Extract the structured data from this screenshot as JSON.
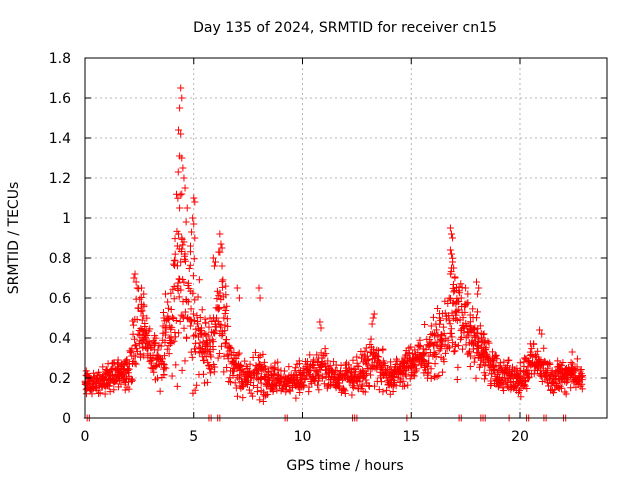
{
  "chart_data": {
    "type": "scatter",
    "title": "Day 135 of 2024, SRMTID for receiver cn15",
    "xlabel": "GPS time / hours",
    "ylabel": "SRMTID / TECUs",
    "xlim": [
      0,
      24
    ],
    "ylim": [
      0,
      1.8
    ],
    "xticks": [
      0,
      5,
      10,
      15,
      20
    ],
    "yticks": [
      0,
      0.2,
      0.4,
      0.6,
      0.8,
      1,
      1.2,
      1.4,
      1.6,
      1.8
    ],
    "xtick_labels": [
      "0",
      "5",
      "10",
      "15",
      "20"
    ],
    "ytick_labels": [
      "0",
      "0.2",
      "0.4",
      "0.6",
      "0.8",
      "1",
      "1.2",
      "1.4",
      "1.6",
      "1.8"
    ],
    "grid": true,
    "marker": "+",
    "series": [
      {
        "name": "SRMTID",
        "color": "#ff0000",
        "profile": [
          [
            0.0,
            0.17,
            0.05
          ],
          [
            0.5,
            0.18,
            0.06
          ],
          [
            1.0,
            0.2,
            0.07
          ],
          [
            1.5,
            0.22,
            0.06
          ],
          [
            2.0,
            0.23,
            0.08
          ],
          [
            2.3,
            0.4,
            0.17
          ],
          [
            2.6,
            0.45,
            0.15
          ],
          [
            3.0,
            0.33,
            0.12
          ],
          [
            3.5,
            0.3,
            0.12
          ],
          [
            4.0,
            0.5,
            0.2
          ],
          [
            4.3,
            0.82,
            0.45
          ],
          [
            4.6,
            0.65,
            0.3
          ],
          [
            5.0,
            0.45,
            0.3
          ],
          [
            5.5,
            0.35,
            0.15
          ],
          [
            6.0,
            0.45,
            0.2
          ],
          [
            6.3,
            0.5,
            0.25
          ],
          [
            6.8,
            0.25,
            0.1
          ],
          [
            7.5,
            0.2,
            0.08
          ],
          [
            8.0,
            0.22,
            0.1
          ],
          [
            9.0,
            0.18,
            0.06
          ],
          [
            10.0,
            0.2,
            0.07
          ],
          [
            10.8,
            0.25,
            0.1
          ],
          [
            11.5,
            0.2,
            0.07
          ],
          [
            12.5,
            0.22,
            0.08
          ],
          [
            13.2,
            0.28,
            0.12
          ],
          [
            14.0,
            0.2,
            0.07
          ],
          [
            15.0,
            0.28,
            0.08
          ],
          [
            15.5,
            0.3,
            0.1
          ],
          [
            16.0,
            0.35,
            0.15
          ],
          [
            16.5,
            0.4,
            0.15
          ],
          [
            16.9,
            0.55,
            0.25
          ],
          [
            17.5,
            0.45,
            0.15
          ],
          [
            18.0,
            0.38,
            0.12
          ],
          [
            18.5,
            0.3,
            0.1
          ],
          [
            19.0,
            0.22,
            0.07
          ],
          [
            20.0,
            0.2,
            0.07
          ],
          [
            20.8,
            0.28,
            0.1
          ],
          [
            21.5,
            0.2,
            0.07
          ],
          [
            22.5,
            0.22,
            0.07
          ],
          [
            22.9,
            0.18,
            0.05
          ]
        ],
        "peaks": [
          [
            4.4,
            1.65
          ],
          [
            4.35,
            1.55
          ],
          [
            4.45,
            1.6
          ],
          [
            4.3,
            1.44
          ],
          [
            4.4,
            1.42
          ],
          [
            4.35,
            1.31
          ],
          [
            4.45,
            1.3
          ],
          [
            4.5,
            1.25
          ],
          [
            4.55,
            1.2
          ],
          [
            4.6,
            1.15
          ],
          [
            4.45,
            1.12
          ],
          [
            4.7,
            1.05
          ],
          [
            4.35,
            1.05
          ],
          [
            4.65,
            0.98
          ],
          [
            4.3,
            0.92
          ],
          [
            4.45,
            0.9
          ],
          [
            4.55,
            0.88
          ],
          [
            4.25,
            0.86
          ],
          [
            4.6,
            0.82
          ],
          [
            4.4,
            0.78
          ],
          [
            5.0,
            1.1
          ],
          [
            5.05,
            1.08
          ],
          [
            4.95,
            1.0
          ],
          [
            5.0,
            0.97
          ],
          [
            4.9,
            0.93
          ],
          [
            5.05,
            0.9
          ],
          [
            4.85,
            0.86
          ],
          [
            6.2,
            0.92
          ],
          [
            6.25,
            0.87
          ],
          [
            6.3,
            0.85
          ],
          [
            6.15,
            0.83
          ],
          [
            5.9,
            0.8
          ],
          [
            6.0,
            0.78
          ],
          [
            5.95,
            0.76
          ],
          [
            6.3,
            0.76
          ],
          [
            2.3,
            0.72
          ],
          [
            2.25,
            0.7
          ],
          [
            2.35,
            0.68
          ],
          [
            2.4,
            0.65
          ],
          [
            2.6,
            0.65
          ],
          [
            2.7,
            0.62
          ],
          [
            3.7,
            0.62
          ],
          [
            3.8,
            0.58
          ],
          [
            7.0,
            0.65
          ],
          [
            7.1,
            0.6
          ],
          [
            8.0,
            0.65
          ],
          [
            8.05,
            0.6
          ],
          [
            16.8,
            0.95
          ],
          [
            16.85,
            0.92
          ],
          [
            16.9,
            0.9
          ],
          [
            16.8,
            0.84
          ],
          [
            16.85,
            0.82
          ],
          [
            16.9,
            0.78
          ],
          [
            16.95,
            0.75
          ],
          [
            17.5,
            0.65
          ],
          [
            17.6,
            0.62
          ],
          [
            17.3,
            0.6
          ],
          [
            18.0,
            0.68
          ],
          [
            18.1,
            0.65
          ],
          [
            18.05,
            0.62
          ],
          [
            10.8,
            0.48
          ],
          [
            10.85,
            0.45
          ],
          [
            13.3,
            0.52
          ],
          [
            13.25,
            0.5
          ],
          [
            13.2,
            0.47
          ],
          [
            16.3,
            0.5
          ],
          [
            20.9,
            0.44
          ],
          [
            21.0,
            0.42
          ],
          [
            22.4,
            0.33
          ]
        ],
        "zeros": [
          0.1,
          0.2,
          5.7,
          5.8,
          6.1,
          6.2,
          9.2,
          9.3,
          12.3,
          12.4,
          12.5,
          14.8,
          17.2,
          17.3,
          18.2,
          18.3,
          18.4,
          19.5,
          20.3,
          20.4,
          21.1,
          21.2,
          22.0,
          22.1
        ]
      }
    ]
  }
}
